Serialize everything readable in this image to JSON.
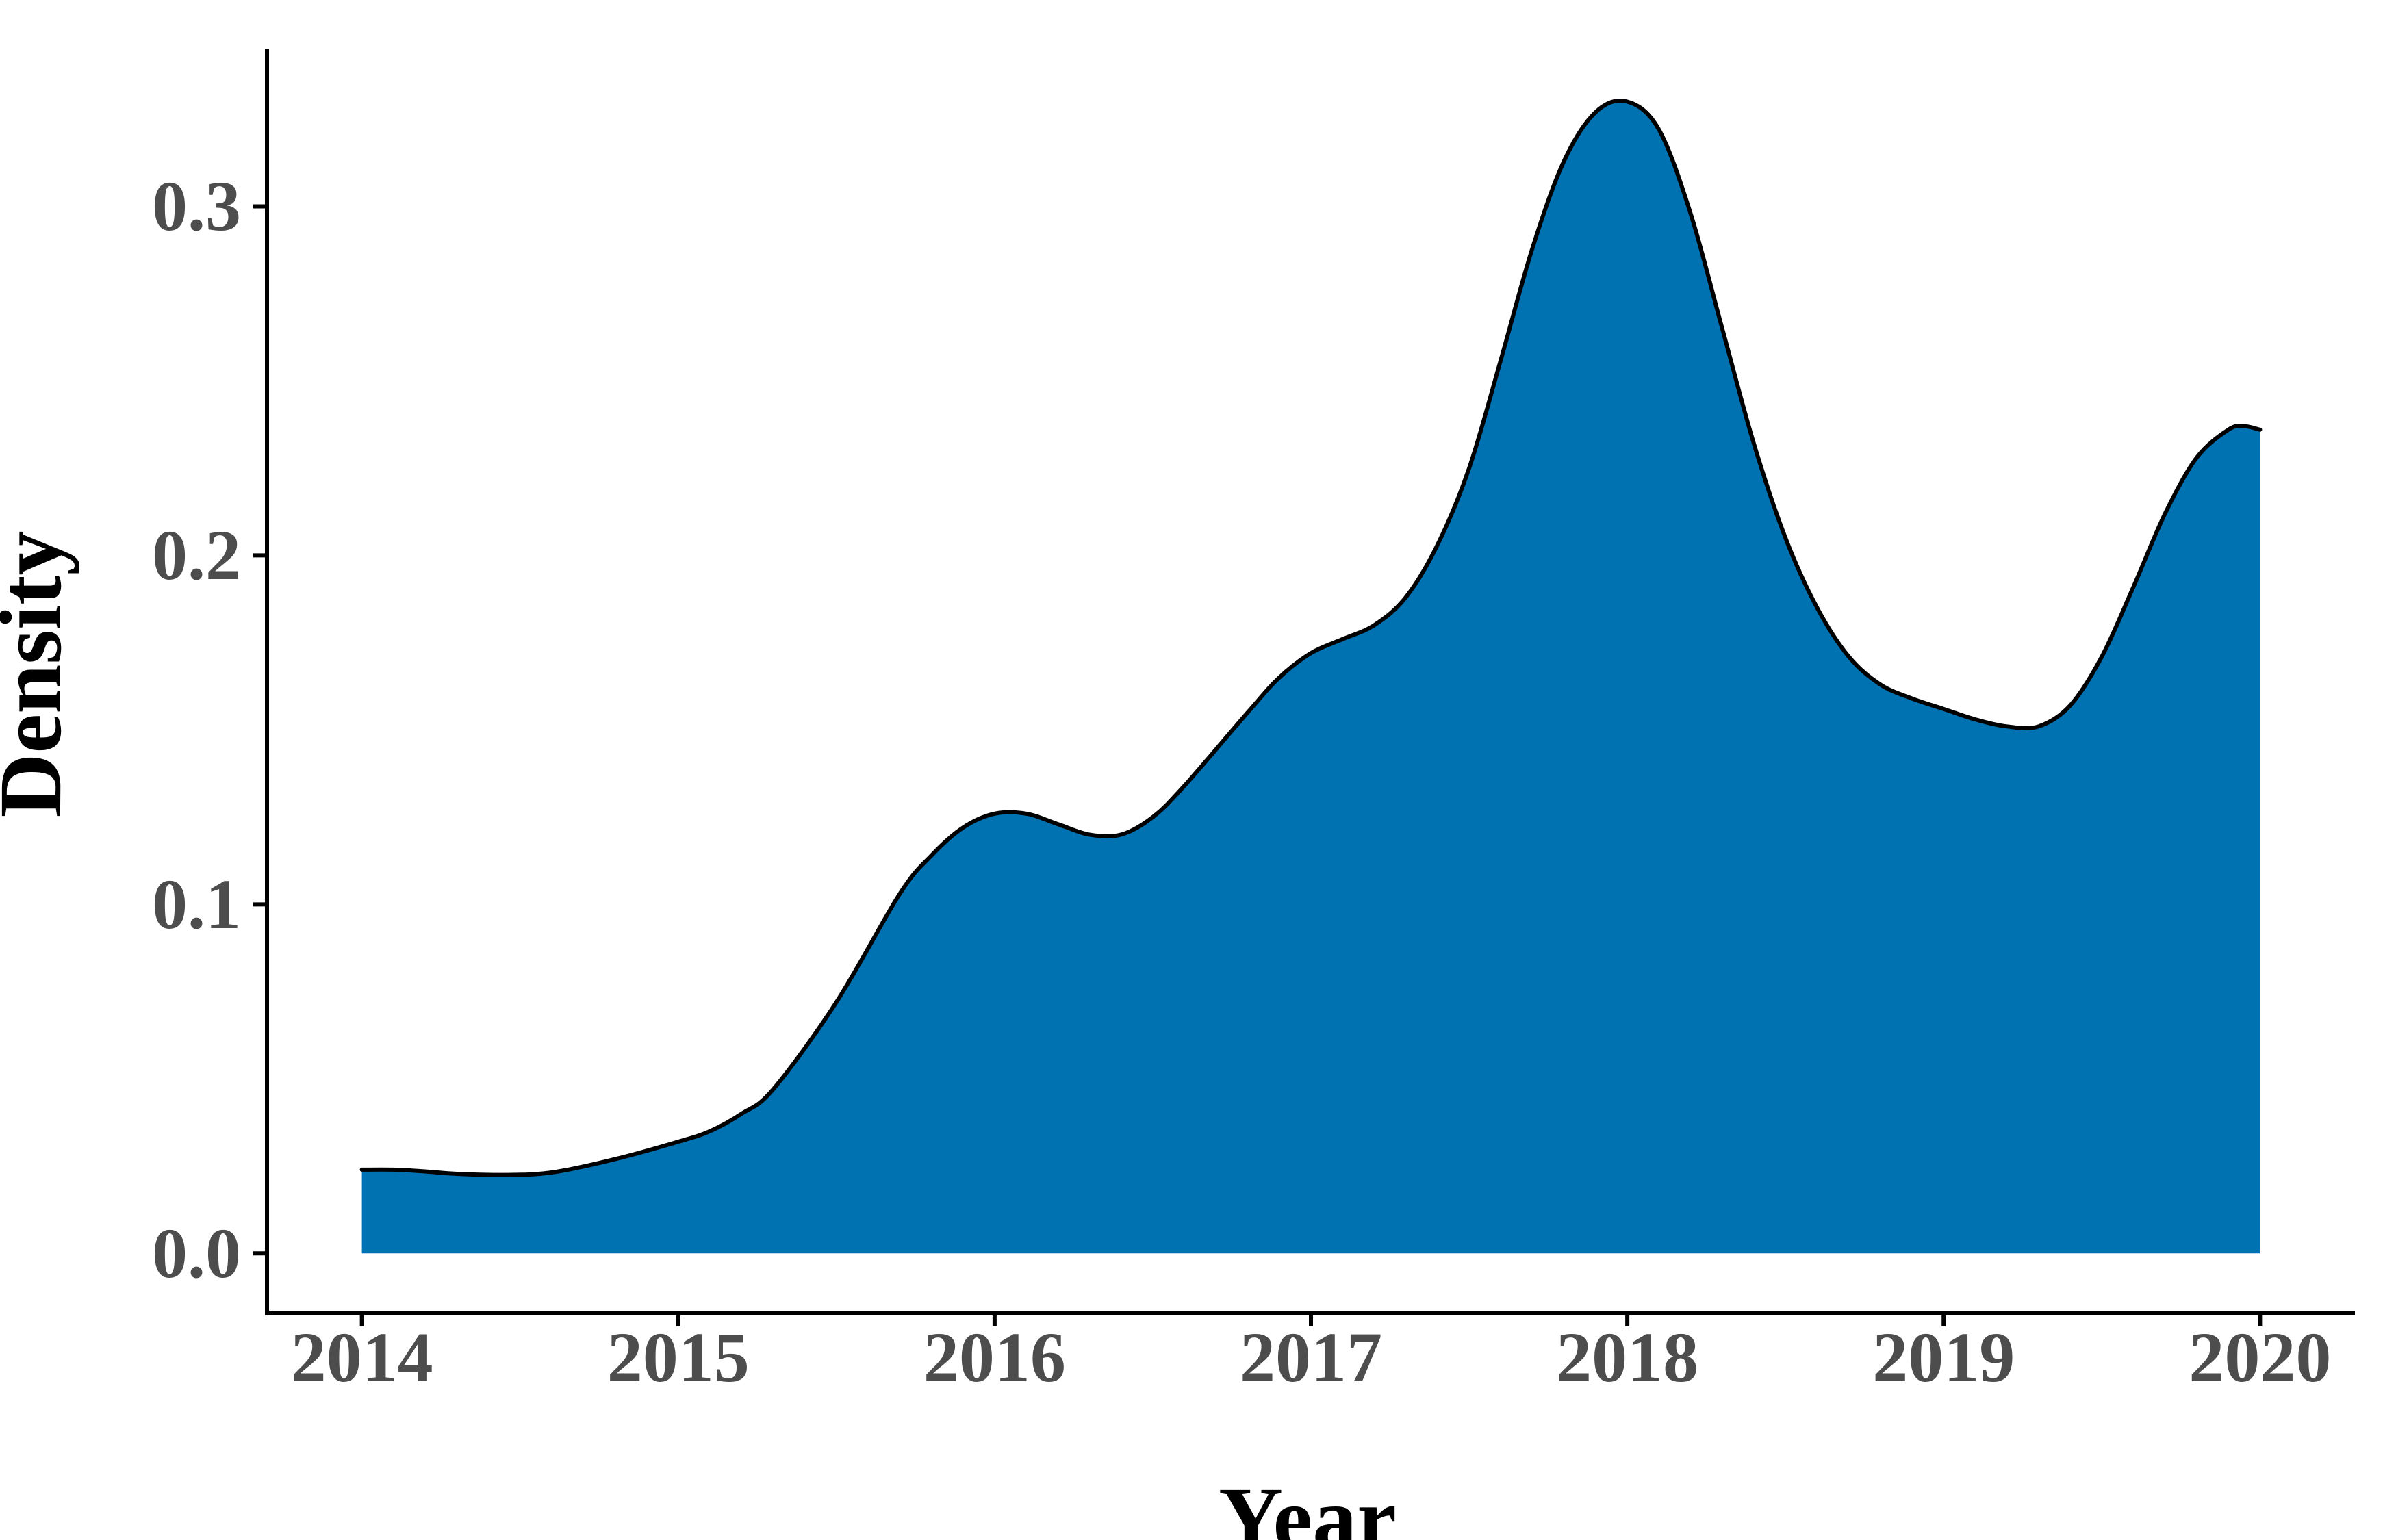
{
  "chart_data": {
    "type": "area",
    "title": "",
    "xlabel": "Year",
    "ylabel": "Density",
    "xlim": [
      2013.7,
      2020.3
    ],
    "ylim": [
      -0.017,
      0.345
    ],
    "x_ticks": [
      2014,
      2015,
      2016,
      2017,
      2018,
      2019,
      2020
    ],
    "x_tick_labels": [
      "2014",
      "2015",
      "2016",
      "2017",
      "2018",
      "2019",
      "2020"
    ],
    "y_ticks": [
      0.0,
      0.1,
      0.2,
      0.3
    ],
    "y_tick_labels": [
      "0.0",
      "0.1",
      "0.2",
      "0.3"
    ],
    "grid": false,
    "legend": "none",
    "fill_color": "#0072B2",
    "line_color": "#000000",
    "axis_color": "#000000",
    "tick_label_color": "#4d4d4d",
    "series": [
      {
        "x": [
          2014.0,
          2014.1,
          2014.2,
          2014.3,
          2014.45,
          2014.6,
          2014.8,
          2015.0,
          2015.1,
          2015.2,
          2015.3,
          2015.5,
          2015.7,
          2015.8,
          2015.9,
          2016.0,
          2016.1,
          2016.2,
          2016.3,
          2016.4,
          2016.5,
          2016.6,
          2016.8,
          2016.9,
          2017.0,
          2017.1,
          2017.2,
          2017.3,
          2017.4,
          2017.5,
          2017.6,
          2017.7,
          2017.8,
          2017.9,
          2018.0,
          2018.1,
          2018.2,
          2018.3,
          2018.4,
          2018.5,
          2018.6,
          2018.7,
          2018.8,
          2018.9,
          2019.0,
          2019.1,
          2019.2,
          2019.3,
          2019.4,
          2019.5,
          2019.6,
          2019.7,
          2019.8,
          2019.9,
          2019.95,
          2020.0
        ],
        "y": [
          0.024,
          0.024,
          0.0235,
          0.0228,
          0.0225,
          0.0232,
          0.027,
          0.032,
          0.035,
          0.04,
          0.047,
          0.072,
          0.103,
          0.114,
          0.122,
          0.126,
          0.126,
          0.123,
          0.12,
          0.12,
          0.125,
          0.134,
          0.155,
          0.165,
          0.172,
          0.176,
          0.18,
          0.188,
          0.203,
          0.225,
          0.256,
          0.288,
          0.313,
          0.327,
          0.33,
          0.322,
          0.298,
          0.265,
          0.232,
          0.205,
          0.185,
          0.171,
          0.163,
          0.159,
          0.156,
          0.153,
          0.151,
          0.151,
          0.157,
          0.171,
          0.191,
          0.212,
          0.228,
          0.236,
          0.237,
          0.236
        ]
      }
    ]
  }
}
